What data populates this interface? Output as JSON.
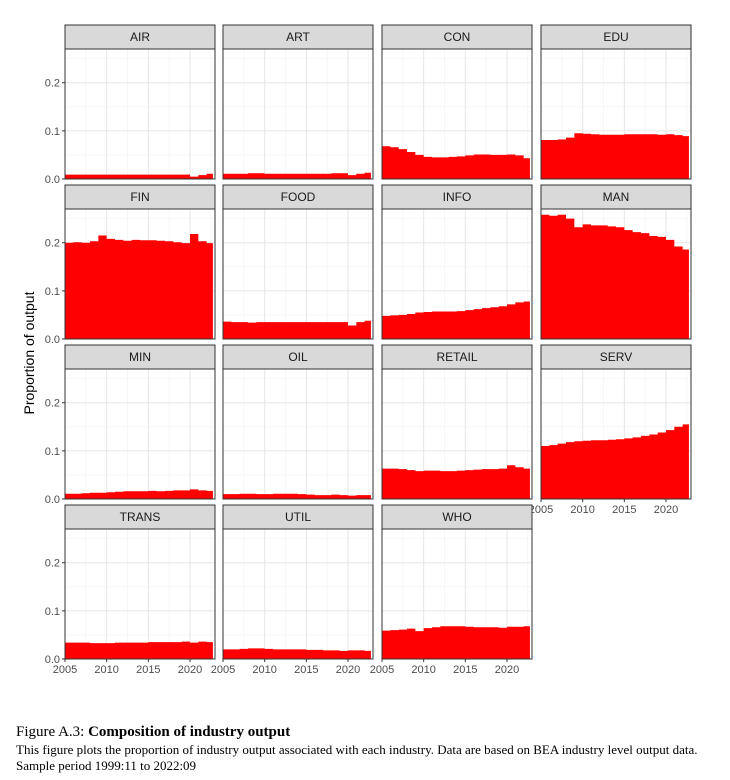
{
  "chart_data": {
    "type": "area",
    "ylabel": "Proportion of output",
    "xlim": [
      2005,
      2023
    ],
    "ylim": [
      0,
      0.27
    ],
    "x_ticks": [
      2005,
      2010,
      2015,
      2020
    ],
    "x_tick_labels": [
      "2005",
      "2010",
      "2015",
      "2020"
    ],
    "y_ticks": [
      0,
      0.1,
      0.2
    ],
    "y_tick_labels": [
      "0.0",
      "0.1",
      "0.2"
    ],
    "grid": true,
    "fill_color": "#ff0000",
    "strip_color": "#d9d9d9",
    "x": [
      2005,
      2006,
      2007,
      2008,
      2009,
      2010,
      2011,
      2012,
      2013,
      2014,
      2015,
      2016,
      2017,
      2018,
      2019,
      2020,
      2021,
      2022
    ],
    "panels": [
      {
        "name": "AIR",
        "values": [
          0.009,
          0.009,
          0.009,
          0.009,
          0.009,
          0.009,
          0.009,
          0.009,
          0.009,
          0.009,
          0.009,
          0.009,
          0.009,
          0.009,
          0.009,
          0.005,
          0.008,
          0.011
        ]
      },
      {
        "name": "ART",
        "values": [
          0.011,
          0.011,
          0.011,
          0.012,
          0.012,
          0.011,
          0.011,
          0.011,
          0.011,
          0.011,
          0.011,
          0.011,
          0.011,
          0.012,
          0.012,
          0.008,
          0.011,
          0.013
        ]
      },
      {
        "name": "CON",
        "values": [
          0.068,
          0.066,
          0.062,
          0.056,
          0.05,
          0.046,
          0.045,
          0.045,
          0.046,
          0.047,
          0.049,
          0.051,
          0.051,
          0.05,
          0.05,
          0.051,
          0.049,
          0.043
        ]
      },
      {
        "name": "EDU",
        "values": [
          0.081,
          0.081,
          0.082,
          0.086,
          0.095,
          0.094,
          0.093,
          0.092,
          0.092,
          0.092,
          0.093,
          0.093,
          0.093,
          0.093,
          0.092,
          0.093,
          0.091,
          0.089
        ]
      },
      {
        "name": "FIN",
        "values": [
          0.2,
          0.201,
          0.2,
          0.203,
          0.215,
          0.208,
          0.206,
          0.204,
          0.206,
          0.205,
          0.205,
          0.204,
          0.203,
          0.201,
          0.199,
          0.218,
          0.203,
          0.199
        ]
      },
      {
        "name": "FOOD",
        "values": [
          0.036,
          0.035,
          0.035,
          0.034,
          0.035,
          0.035,
          0.035,
          0.035,
          0.035,
          0.035,
          0.035,
          0.035,
          0.035,
          0.035,
          0.035,
          0.028,
          0.035,
          0.038
        ]
      },
      {
        "name": "INFO",
        "values": [
          0.048,
          0.049,
          0.05,
          0.052,
          0.055,
          0.056,
          0.057,
          0.057,
          0.057,
          0.058,
          0.06,
          0.062,
          0.064,
          0.066,
          0.068,
          0.072,
          0.076,
          0.078
        ]
      },
      {
        "name": "MAN",
        "values": [
          0.258,
          0.256,
          0.258,
          0.25,
          0.232,
          0.238,
          0.236,
          0.236,
          0.234,
          0.232,
          0.226,
          0.222,
          0.22,
          0.214,
          0.212,
          0.206,
          0.192,
          0.186
        ]
      },
      {
        "name": "MIN",
        "values": [
          0.011,
          0.011,
          0.012,
          0.013,
          0.013,
          0.014,
          0.015,
          0.016,
          0.016,
          0.016,
          0.017,
          0.016,
          0.017,
          0.018,
          0.018,
          0.02,
          0.018,
          0.017
        ]
      },
      {
        "name": "OIL",
        "values": [
          0.01,
          0.01,
          0.011,
          0.011,
          0.01,
          0.01,
          0.011,
          0.011,
          0.011,
          0.01,
          0.009,
          0.008,
          0.008,
          0.009,
          0.008,
          0.007,
          0.008,
          0.008
        ]
      },
      {
        "name": "RETAIL",
        "values": [
          0.063,
          0.063,
          0.062,
          0.06,
          0.058,
          0.059,
          0.059,
          0.058,
          0.058,
          0.059,
          0.06,
          0.061,
          0.062,
          0.062,
          0.063,
          0.07,
          0.066,
          0.063
        ]
      },
      {
        "name": "SERV",
        "values": [
          0.11,
          0.112,
          0.115,
          0.118,
          0.12,
          0.121,
          0.122,
          0.122,
          0.123,
          0.124,
          0.126,
          0.128,
          0.131,
          0.134,
          0.138,
          0.143,
          0.15,
          0.155
        ]
      },
      {
        "name": "TRANS",
        "values": [
          0.034,
          0.034,
          0.034,
          0.033,
          0.033,
          0.033,
          0.034,
          0.034,
          0.034,
          0.034,
          0.035,
          0.035,
          0.035,
          0.035,
          0.036,
          0.034,
          0.036,
          0.035
        ]
      },
      {
        "name": "UTIL",
        "values": [
          0.02,
          0.02,
          0.021,
          0.022,
          0.022,
          0.021,
          0.02,
          0.02,
          0.02,
          0.02,
          0.019,
          0.019,
          0.018,
          0.018,
          0.017,
          0.018,
          0.018,
          0.017
        ]
      },
      {
        "name": "WHO",
        "values": [
          0.059,
          0.06,
          0.061,
          0.063,
          0.058,
          0.064,
          0.066,
          0.068,
          0.068,
          0.068,
          0.067,
          0.066,
          0.066,
          0.066,
          0.065,
          0.067,
          0.067,
          0.068
        ]
      }
    ]
  },
  "caption": {
    "label": "Figure A.3:",
    "title": "Composition of industry output",
    "body": "This figure plots the proportion of industry output associated with each industry. Data are based on BEA industry level output data. Sample period 1999:11 to 2022:09"
  }
}
